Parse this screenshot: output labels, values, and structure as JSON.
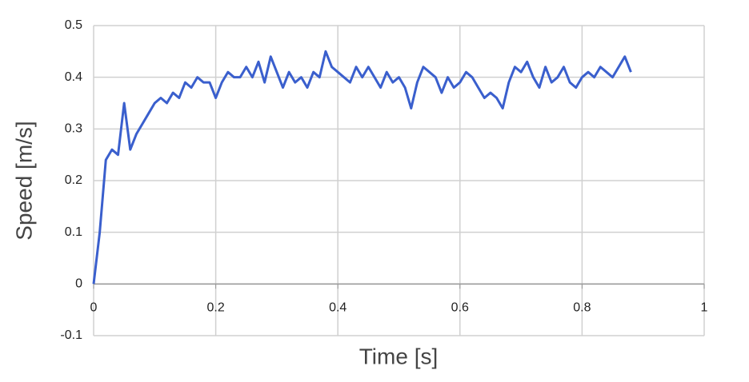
{
  "chart_data": {
    "type": "line",
    "xlabel": "Time [s]",
    "ylabel": "Speed [m/s]",
    "x": [
      0,
      0.01,
      0.02,
      0.03,
      0.04,
      0.05,
      0.06,
      0.07,
      0.08,
      0.09,
      0.1,
      0.11,
      0.12,
      0.13,
      0.14,
      0.15,
      0.16,
      0.17,
      0.18,
      0.19,
      0.2,
      0.21,
      0.22,
      0.23,
      0.24,
      0.25,
      0.26,
      0.27,
      0.28,
      0.29,
      0.3,
      0.31,
      0.32,
      0.33,
      0.34,
      0.35,
      0.36,
      0.37,
      0.38,
      0.39,
      0.4,
      0.41,
      0.42,
      0.43,
      0.44,
      0.45,
      0.46,
      0.47,
      0.48,
      0.49,
      0.5,
      0.51,
      0.52,
      0.53,
      0.54,
      0.55,
      0.56,
      0.57,
      0.58,
      0.59,
      0.6,
      0.61,
      0.62,
      0.63,
      0.64,
      0.65,
      0.66,
      0.67,
      0.68,
      0.69,
      0.7,
      0.71,
      0.72,
      0.73,
      0.74,
      0.75,
      0.76,
      0.77,
      0.78,
      0.79,
      0.8,
      0.81,
      0.82,
      0.83,
      0.84,
      0.85,
      0.86,
      0.87,
      0.88
    ],
    "series": [
      {
        "color": "#3a5fcd",
        "values": [
          0,
          0.1,
          0.24,
          0.26,
          0.25,
          0.35,
          0.26,
          0.29,
          0.31,
          0.33,
          0.35,
          0.36,
          0.35,
          0.37,
          0.36,
          0.39,
          0.38,
          0.4,
          0.39,
          0.39,
          0.36,
          0.39,
          0.41,
          0.4,
          0.4,
          0.42,
          0.4,
          0.43,
          0.39,
          0.44,
          0.41,
          0.38,
          0.41,
          0.39,
          0.4,
          0.38,
          0.41,
          0.4,
          0.45,
          0.42,
          0.41,
          0.4,
          0.39,
          0.42,
          0.4,
          0.42,
          0.4,
          0.38,
          0.41,
          0.39,
          0.4,
          0.38,
          0.34,
          0.39,
          0.42,
          0.41,
          0.4,
          0.37,
          0.4,
          0.38,
          0.39,
          0.41,
          0.4,
          0.38,
          0.36,
          0.37,
          0.36,
          0.34,
          0.39,
          0.42,
          0.41,
          0.43,
          0.4,
          0.38,
          0.42,
          0.39,
          0.4,
          0.42,
          0.39,
          0.38,
          0.4,
          0.41,
          0.4,
          0.42,
          0.41,
          0.4,
          0.42,
          0.44,
          0.41
        ]
      }
    ],
    "xlim": [
      0,
      1
    ],
    "xticks": [
      0,
      0.2,
      0.4,
      0.6,
      0.8,
      1
    ],
    "ylim": [
      -0.1,
      0.5
    ],
    "yticks": [
      -0.1,
      0,
      0.1,
      0.2,
      0.3,
      0.4,
      0.5
    ],
    "grid": true
  }
}
